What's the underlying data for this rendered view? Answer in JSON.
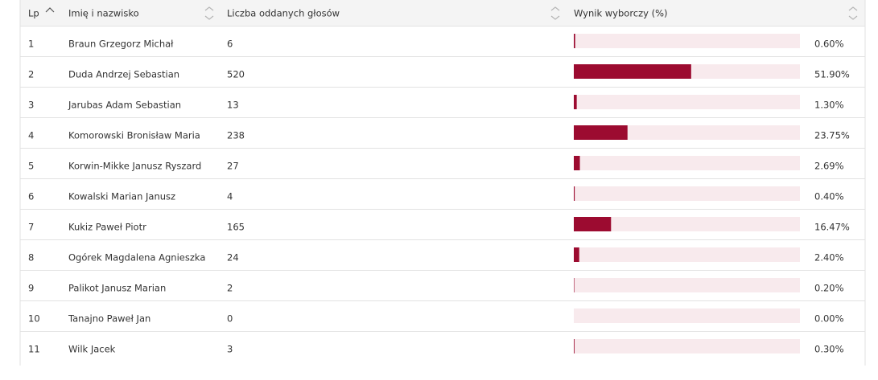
{
  "table": {
    "columns": [
      "Lp",
      "Imię i nazwisko",
      "Liczba oddanych głosów",
      "Wynik wyborczy (%)"
    ],
    "xlim": [
      0,
      100
    ],
    "bar_color": "#9c0b30",
    "track_color": "#f8eaed",
    "rows": [
      {
        "lp": 1,
        "name": "Braun Grzegorz Michał",
        "votes": 6,
        "result": 0.6,
        "result_label": "0.60%"
      },
      {
        "lp": 2,
        "name": "Duda Andrzej Sebastian",
        "votes": 520,
        "result": 51.9,
        "result_label": "51.90%"
      },
      {
        "lp": 3,
        "name": "Jarubas Adam Sebastian",
        "votes": 13,
        "result": 1.3,
        "result_label": "1.30%"
      },
      {
        "lp": 4,
        "name": "Komorowski Bronisław Maria",
        "votes": 238,
        "result": 23.75,
        "result_label": "23.75%"
      },
      {
        "lp": 5,
        "name": "Korwin-Mikke Janusz Ryszard",
        "votes": 27,
        "result": 2.69,
        "result_label": "2.69%"
      },
      {
        "lp": 6,
        "name": "Kowalski Marian Janusz",
        "votes": 4,
        "result": 0.4,
        "result_label": "0.40%"
      },
      {
        "lp": 7,
        "name": "Kukiz Paweł Piotr",
        "votes": 165,
        "result": 16.47,
        "result_label": "16.47%"
      },
      {
        "lp": 8,
        "name": "Ogórek Magdalena Agnieszka",
        "votes": 24,
        "result": 2.4,
        "result_label": "2.40%"
      },
      {
        "lp": 9,
        "name": "Palikot Janusz Marian",
        "votes": 2,
        "result": 0.2,
        "result_label": "0.20%"
      },
      {
        "lp": 10,
        "name": "Tanajno Paweł Jan",
        "votes": 0,
        "result": 0,
        "result_label": "0.00%"
      },
      {
        "lp": 11,
        "name": "Wilk Jacek",
        "votes": 3,
        "result": 0.3,
        "result_label": "0.30%"
      }
    ]
  }
}
